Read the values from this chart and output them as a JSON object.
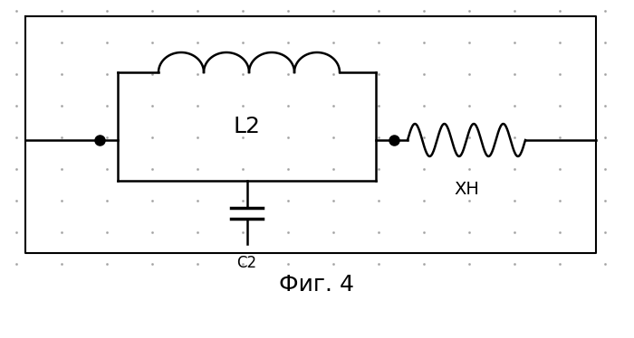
{
  "bg_color": "#efefeb",
  "border_color": "#000000",
  "title": "Фиг. 4",
  "title_fontsize": 18,
  "dot_color": "#999999",
  "line_color": "#000000",
  "lw": 1.8,
  "label_L2": "L2",
  "label_C2": "C2",
  "label_XH": "XH",
  "fig_width": 7.0,
  "fig_height": 3.74,
  "dpi": 100
}
